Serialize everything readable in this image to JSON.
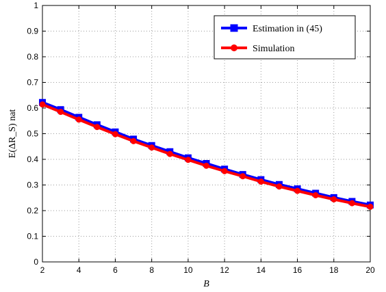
{
  "chart_data": {
    "type": "line",
    "xlabel": "B",
    "ylabel": "E(ΔR_S) nat",
    "xlim": [
      2,
      20
    ],
    "ylim": [
      0,
      1
    ],
    "xticks": [
      2,
      4,
      6,
      8,
      10,
      12,
      14,
      16,
      18,
      20
    ],
    "yticks": [
      0,
      0.1,
      0.2,
      0.3,
      0.4,
      0.5,
      0.6,
      0.7,
      0.8,
      0.9,
      1
    ],
    "xtick_labels": [
      "2",
      "4",
      "6",
      "8",
      "10",
      "12",
      "14",
      "16",
      "18",
      "20"
    ],
    "ytick_labels": [
      "0",
      "0.1",
      "0.2",
      "0.3",
      "0.4",
      "0.5",
      "0.6",
      "0.7",
      "0.8",
      "0.9",
      "1"
    ],
    "grid": true,
    "legend_position": "top-right",
    "x": [
      2,
      3,
      4,
      5,
      6,
      7,
      8,
      9,
      10,
      11,
      12,
      13,
      14,
      15,
      16,
      17,
      18,
      19,
      20
    ],
    "series": [
      {
        "name": "Estimation in (45)",
        "color": "#0000ff",
        "marker": "square",
        "values": [
          0.622,
          0.594,
          0.564,
          0.535,
          0.507,
          0.479,
          0.454,
          0.43,
          0.406,
          0.384,
          0.362,
          0.341,
          0.321,
          0.302,
          0.285,
          0.268,
          0.251,
          0.236,
          0.222
        ]
      },
      {
        "name": "Simulation",
        "color": "#ff0000",
        "marker": "circle",
        "values": [
          0.614,
          0.585,
          0.555,
          0.526,
          0.498,
          0.471,
          0.446,
          0.421,
          0.398,
          0.375,
          0.354,
          0.334,
          0.313,
          0.294,
          0.277,
          0.26,
          0.244,
          0.229,
          0.215
        ]
      }
    ]
  }
}
